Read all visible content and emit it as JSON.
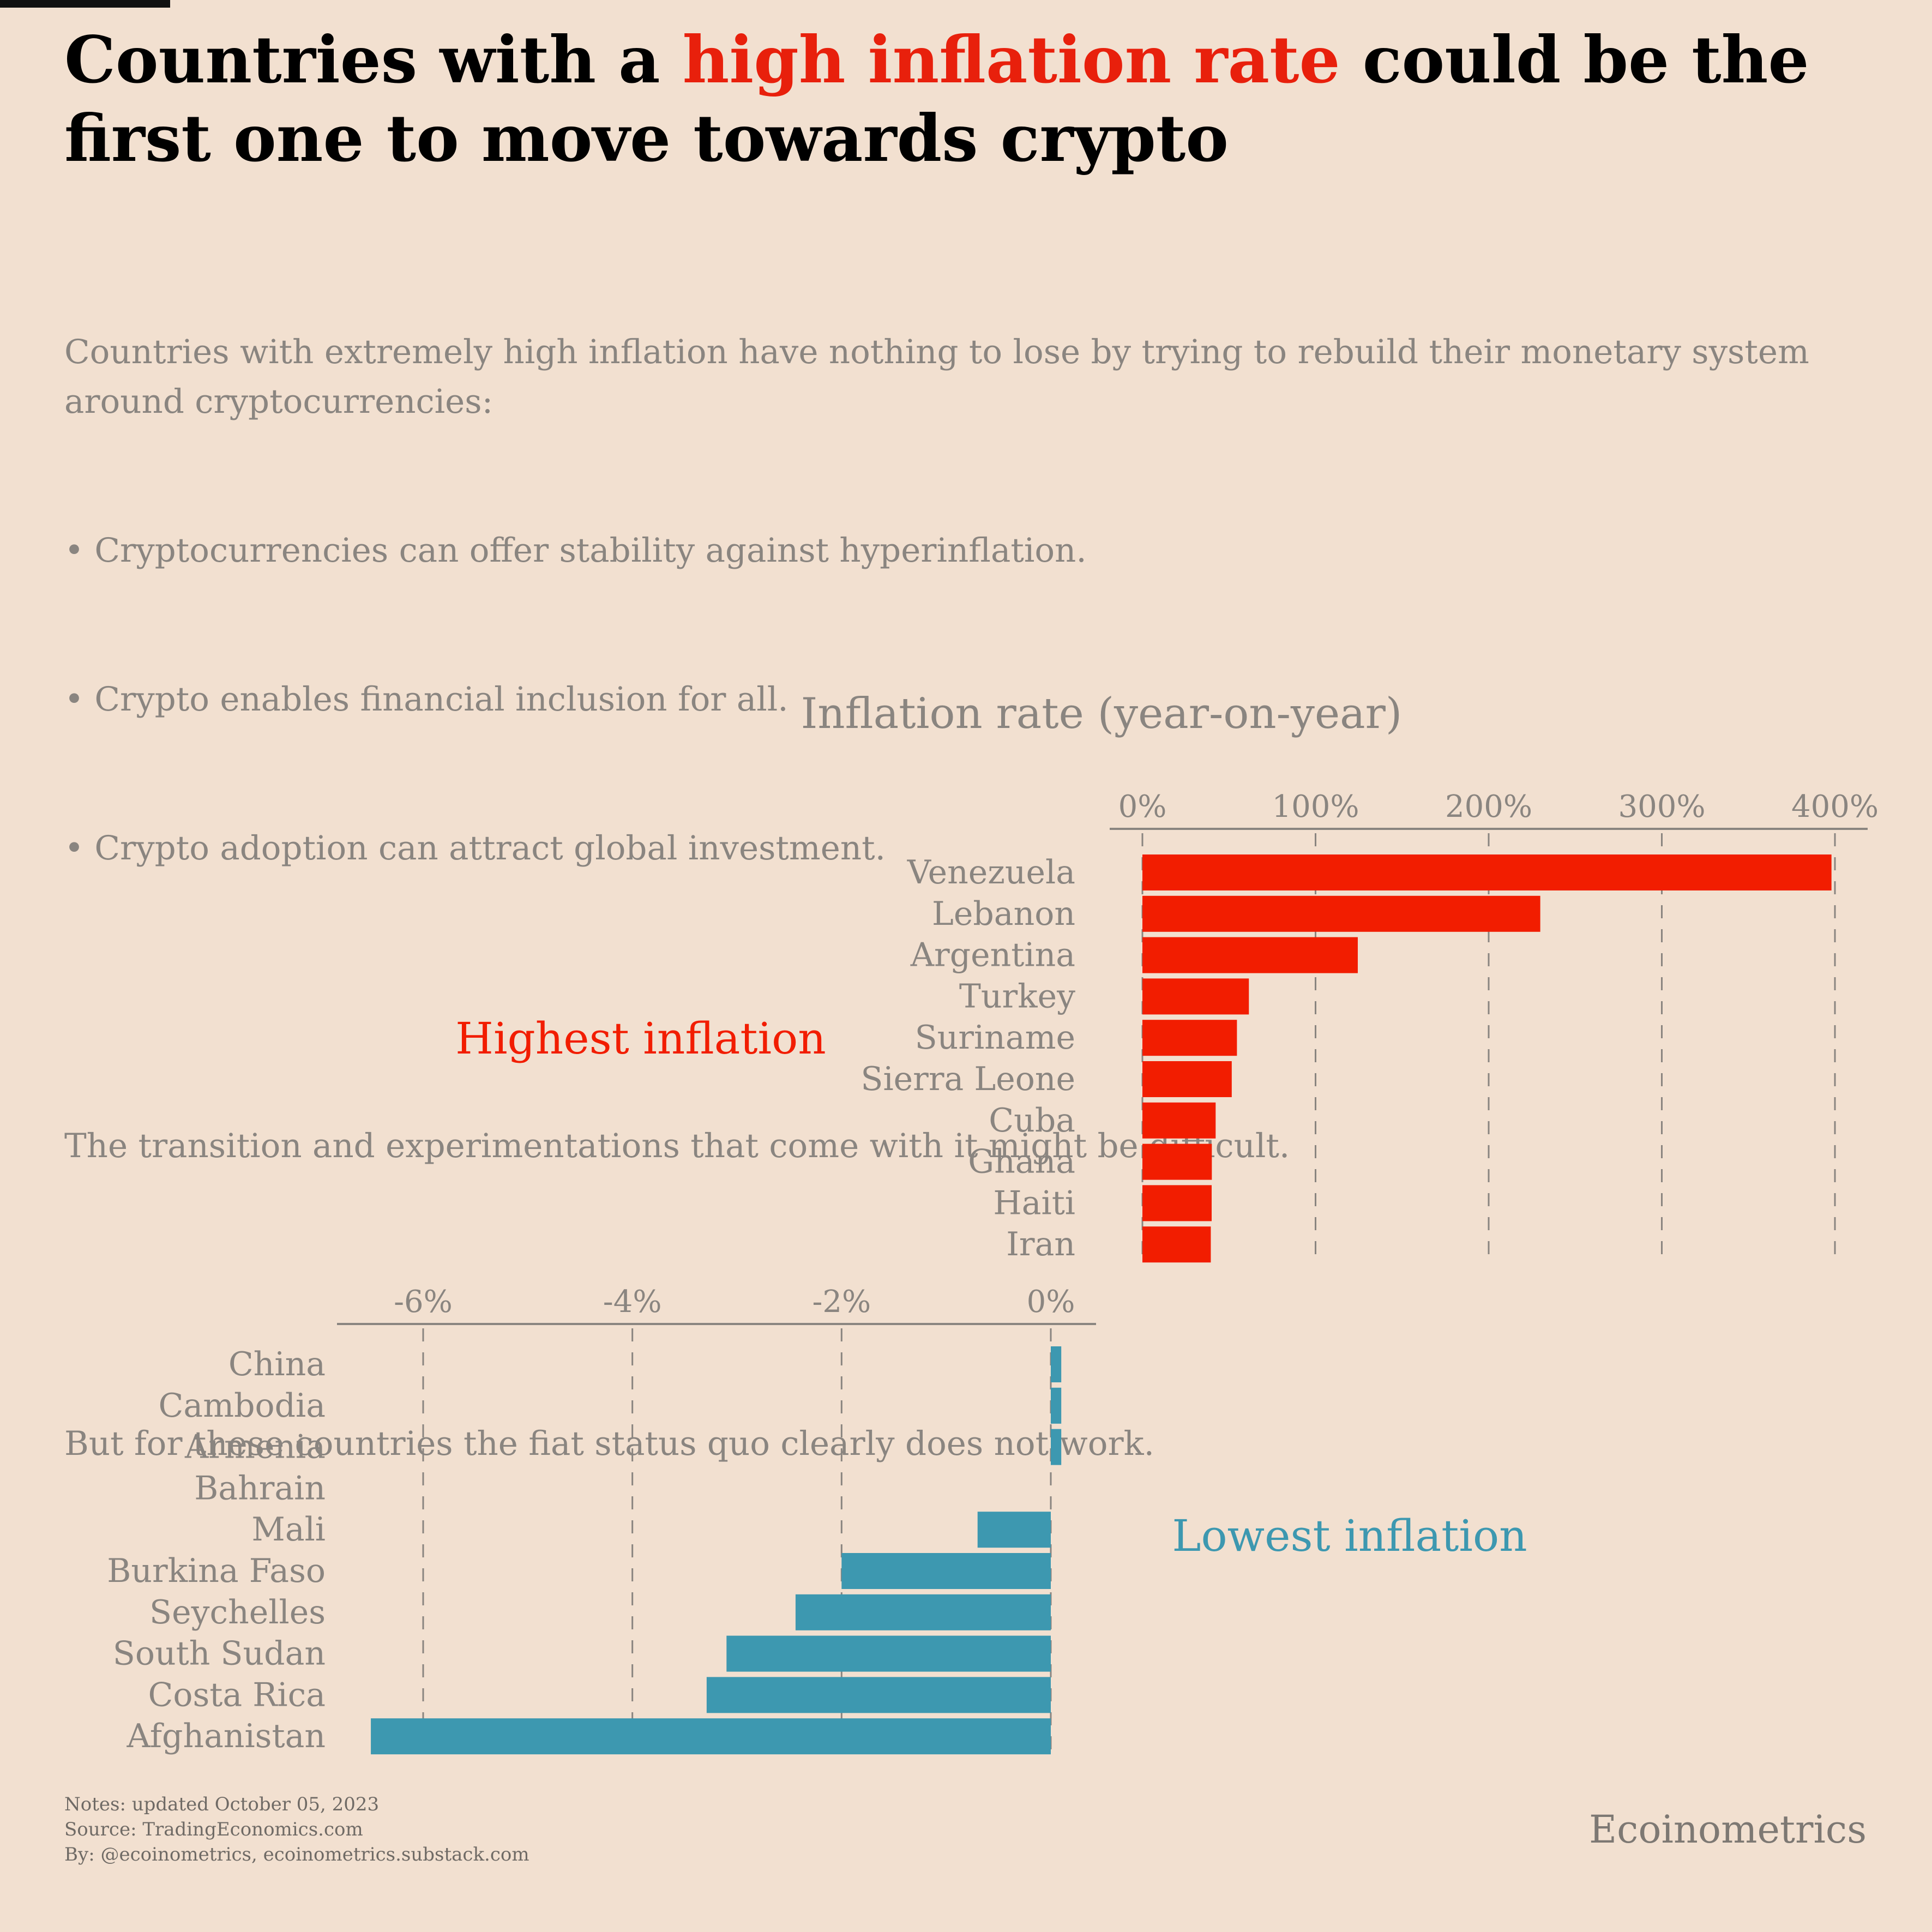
{
  "title": {
    "prefix": "Countries with a ",
    "highlight": "high inflation rate",
    "suffix": " could be the first one to move towards crypto"
  },
  "subtitle_lines": [
    "Countries with extremely high inflation have nothing to lose by trying to rebuild their monetary system around cryptocurrencies:",
    "• Cryptocurrencies can offer stability against hyperinflation.",
    "• Crypto enables financial inclusion for all.",
    "• Crypto adoption can attract global investment.",
    "",
    "The transition and experimentations that come with it might be difficult.",
    "",
    "But for these countries the fiat status quo clearly does not work."
  ],
  "chart_data": [
    {
      "type": "bar",
      "orientation": "horizontal",
      "title": "Inflation rate (year-on-year)",
      "group_label": "Highest inflation",
      "color": "#f21d00",
      "categories": [
        "Venezuela",
        "Lebanon",
        "Argentina",
        "Turkey",
        "Suriname",
        "Sierra Leone",
        "Cuba",
        "Ghana",
        "Haiti",
        "Iran"
      ],
      "values": [
        398,
        229.8,
        124.4,
        61.5,
        54.6,
        51.6,
        42.3,
        40.1,
        40.0,
        39.5
      ],
      "xlim": [
        0,
        420
      ],
      "ticks": [
        0,
        100,
        200,
        300,
        400
      ],
      "tick_labels": [
        "0%",
        "100%",
        "200%",
        "300%",
        "400%"
      ],
      "grid": "dashed vertical",
      "axis_position": "top"
    },
    {
      "type": "bar",
      "orientation": "horizontal",
      "group_label": "Lowest inflation",
      "color": "#3d98b0",
      "categories": [
        "China",
        "Cambodia",
        "Armenia",
        "Bahrain",
        "Mali",
        "Burkina Faso",
        "Seychelles",
        "South Sudan",
        "Costa Rica",
        "Afghanistan"
      ],
      "values": [
        0.1,
        0.1,
        0.1,
        0,
        -0.7,
        -2.0,
        -2.44,
        -3.1,
        -3.29,
        -6.5
      ],
      "xlim": [
        -6.8,
        0.45
      ],
      "ticks": [
        -6,
        -4,
        -2,
        0
      ],
      "tick_labels": [
        "-6%",
        "-4%",
        "-2%",
        "0%"
      ],
      "grid": "dashed vertical",
      "axis_position": "top"
    }
  ],
  "footer": {
    "notes": "Notes: updated October 05, 2023",
    "source": "Source: TradingEconomics.com",
    "by": "By: @ecoinometrics, ecoinometrics.substack.com"
  },
  "brand": "Ecoinometrics",
  "colors": {
    "background": "#f2e0d0",
    "highlight": "#e8200c",
    "high_bars": "#f21d00",
    "low_bars": "#3d98b0",
    "muted_text": "#8a8580"
  }
}
